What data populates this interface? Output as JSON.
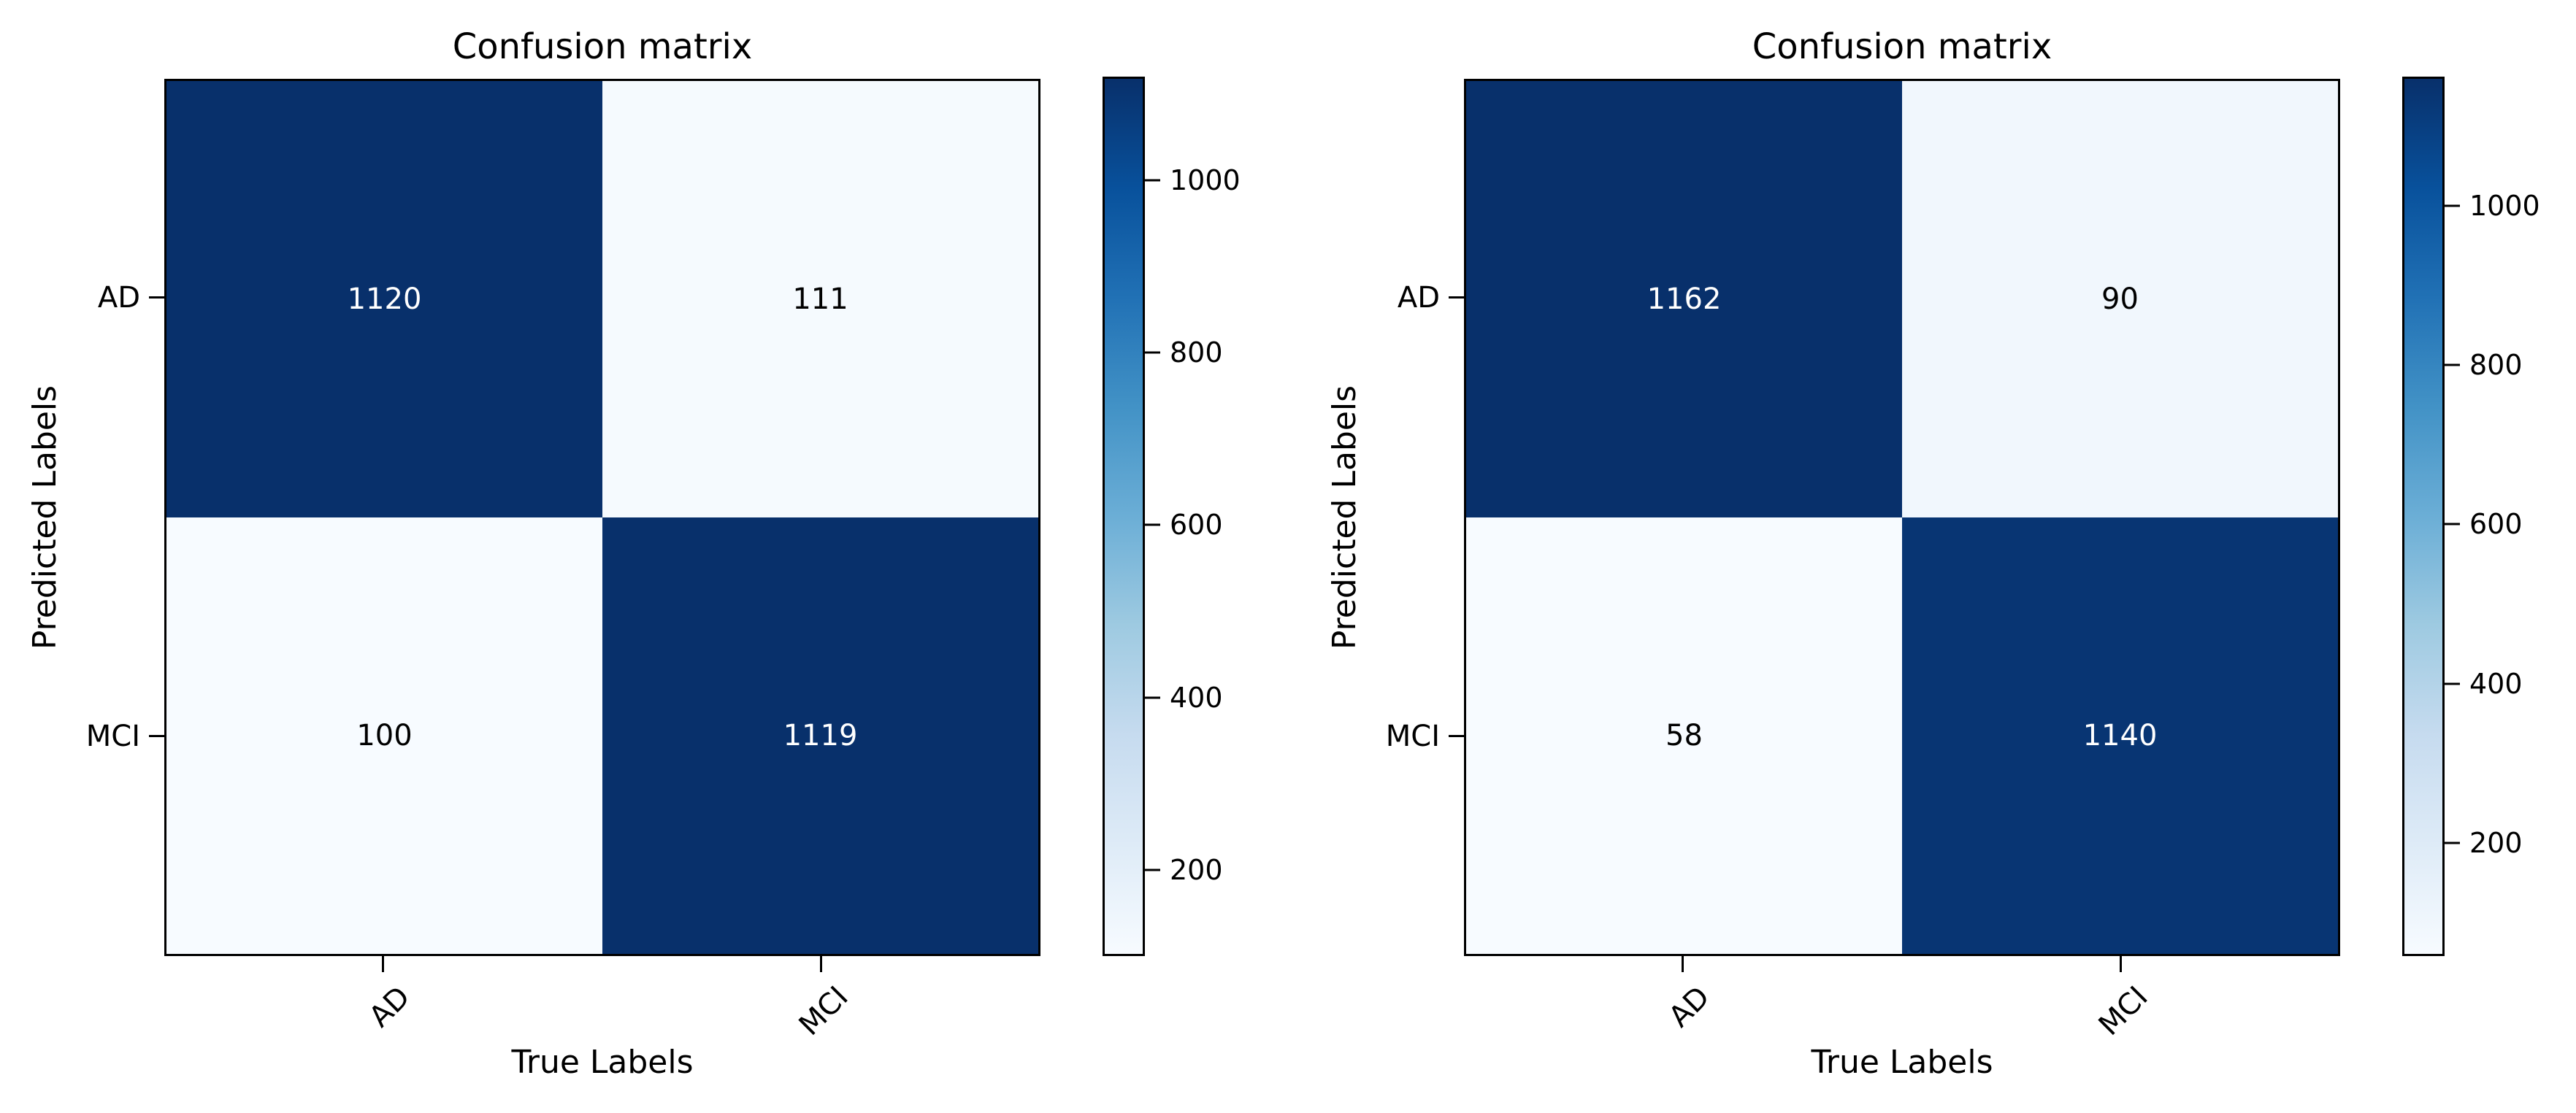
{
  "chart_data": [
    {
      "type": "heatmap",
      "title": "Confusion matrix",
      "xlabel": "True Labels",
      "ylabel": "Predicted Labels",
      "x_categories": [
        "AD",
        "MCI"
      ],
      "y_categories": [
        "AD",
        "MCI"
      ],
      "matrix": [
        [
          1120,
          111
        ],
        [
          100,
          1119
        ]
      ],
      "vmin": 100,
      "vmax": 1120,
      "colormap": "Blues",
      "grid": false,
      "colorbar_position": "right",
      "colorbar_stops": [
        "#08306b",
        "#08519c",
        "#2171b5",
        "#4292c6",
        "#6baed6",
        "#9ecae1",
        "#c6dbef",
        "#deebf7",
        "#f7fbff"
      ],
      "colorbar_ticks": [
        {
          "value": 1000,
          "label": "1000",
          "top": "11.765%"
        },
        {
          "value": 800,
          "label": "800",
          "top": "31.373%"
        },
        {
          "value": 600,
          "label": "600",
          "top": "50.980%"
        },
        {
          "value": 400,
          "label": "400",
          "top": "70.588%"
        },
        {
          "value": 200,
          "label": "200",
          "top": "90.196%"
        }
      ],
      "cells": [
        {
          "row": "AD",
          "col": "AD",
          "value": 1120,
          "bg": "#08306b",
          "fg": "#ffffff"
        },
        {
          "row": "AD",
          "col": "MCI",
          "value": 111,
          "bg": "#f5fafe",
          "fg": "#000000"
        },
        {
          "row": "MCI",
          "col": "AD",
          "value": 100,
          "bg": "#f7fbff",
          "fg": "#000000"
        },
        {
          "row": "MCI",
          "col": "MCI",
          "value": 1119,
          "bg": "#08306b",
          "fg": "#ffffff"
        }
      ]
    },
    {
      "type": "heatmap",
      "title": "Confusion matrix",
      "xlabel": "True Labels",
      "ylabel": "Predicted Labels",
      "x_categories": [
        "AD",
        "MCI"
      ],
      "y_categories": [
        "AD",
        "MCI"
      ],
      "matrix": [
        [
          1162,
          90
        ],
        [
          58,
          1140
        ]
      ],
      "vmin": 58,
      "vmax": 1162,
      "colormap": "Blues",
      "grid": false,
      "colorbar_position": "right",
      "colorbar_stops": [
        "#08306b",
        "#08519c",
        "#2171b5",
        "#4292c6",
        "#6baed6",
        "#9ecae1",
        "#c6dbef",
        "#deebf7",
        "#f7fbff"
      ],
      "colorbar_ticks": [
        {
          "value": 1000,
          "label": "1000",
          "top": "14.674%"
        },
        {
          "value": 800,
          "label": "800",
          "top": "32.790%"
        },
        {
          "value": 600,
          "label": "600",
          "top": "50.906%"
        },
        {
          "value": 400,
          "label": "400",
          "top": "69.022%"
        },
        {
          "value": 200,
          "label": "200",
          "top": "87.138%"
        }
      ],
      "cells": [
        {
          "row": "AD",
          "col": "AD",
          "value": 1162,
          "bg": "#08306b",
          "fg": "#ffffff"
        },
        {
          "row": "AD",
          "col": "MCI",
          "value": 90,
          "bg": "#f1f7fd",
          "fg": "#000000"
        },
        {
          "row": "MCI",
          "col": "AD",
          "value": 58,
          "bg": "#f7fbff",
          "fg": "#000000"
        },
        {
          "row": "MCI",
          "col": "MCI",
          "value": 1140,
          "bg": "#083573",
          "fg": "#ffffff"
        }
      ]
    }
  ]
}
